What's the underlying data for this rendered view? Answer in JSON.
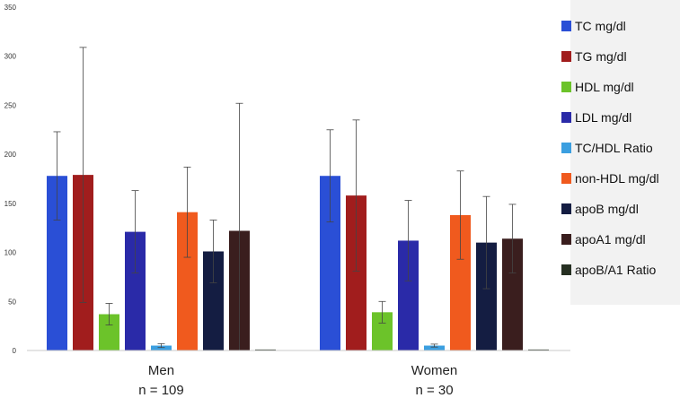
{
  "chart_data": {
    "type": "bar",
    "title": "",
    "xlabel": "",
    "ylabel": "",
    "ylim": [
      0,
      350
    ],
    "yticks": [
      0,
      50,
      100,
      150,
      200,
      250,
      300,
      350
    ],
    "grid": false,
    "legend_position": "right",
    "groups": [
      {
        "line1": "Men",
        "line2": "n = 109"
      },
      {
        "line1": "Women",
        "line2": "n = 30"
      }
    ],
    "series": [
      {
        "name": "TC mg/dl",
        "color": "#2a4fd6",
        "values": [
          178,
          178
        ],
        "errors": [
          45,
          47
        ]
      },
      {
        "name": "TG mg/dl",
        "color": "#a11d1d",
        "values": [
          179,
          158
        ],
        "errors": [
          130,
          77
        ]
      },
      {
        "name": "HDL mg/dl",
        "color": "#6cc32a",
        "values": [
          37,
          39
        ],
        "errors": [
          11,
          11
        ]
      },
      {
        "name": "LDL mg/dl",
        "color": "#2a2aa8",
        "values": [
          121,
          112
        ],
        "errors": [
          42,
          41
        ]
      },
      {
        "name": "TC/HDL Ratio",
        "color": "#3b9fe0",
        "values": [
          5,
          5
        ],
        "errors": [
          2,
          1.5
        ]
      },
      {
        "name": "non-HDL mg/dl",
        "color": "#f05a1e",
        "values": [
          141,
          138
        ],
        "errors": [
          46,
          45
        ]
      },
      {
        "name": "apoB mg/dl",
        "color": "#141d42",
        "values": [
          101,
          110
        ],
        "errors": [
          32,
          47
        ]
      },
      {
        "name": "apoA1 mg/dl",
        "color": "#3a1e1e",
        "values": [
          122,
          114
        ],
        "errors": [
          130,
          35
        ]
      },
      {
        "name": "apoB/A1 Ratio",
        "color": "#263022",
        "values": [
          1,
          1
        ],
        "errors": [
          0,
          0
        ]
      }
    ]
  }
}
